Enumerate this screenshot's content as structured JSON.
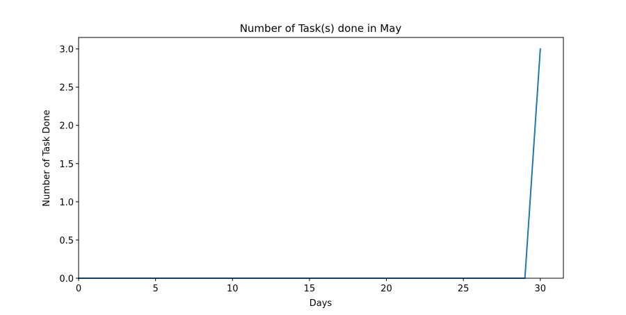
{
  "chart_data": {
    "type": "line",
    "title": "Number of Task(s) done in May",
    "xlabel": "Days",
    "ylabel": "Number of Task Done",
    "xlim": [
      0,
      31.5
    ],
    "ylim": [
      0,
      3.15
    ],
    "xticks": [
      0,
      5,
      10,
      15,
      20,
      25,
      30
    ],
    "xtick_labels": [
      "0",
      "5",
      "10",
      "15",
      "20",
      "25",
      "30"
    ],
    "yticks": [
      0,
      0.5,
      1,
      1.5,
      2,
      2.5,
      3
    ],
    "ytick_labels": [
      "0.0",
      "0.5",
      "1.0",
      "1.5",
      "2.0",
      "2.5",
      "3.0"
    ],
    "grid": false,
    "legend": "none",
    "series": [
      {
        "color": "#1f77b4",
        "x": [
          0,
          1,
          2,
          3,
          4,
          5,
          6,
          7,
          8,
          9,
          10,
          11,
          12,
          13,
          14,
          15,
          16,
          17,
          18,
          19,
          20,
          21,
          22,
          23,
          24,
          25,
          26,
          27,
          28,
          29,
          30
        ],
        "y": [
          0,
          0,
          0,
          0,
          0,
          0,
          0,
          0,
          0,
          0,
          0,
          0,
          0,
          0,
          0,
          0,
          0,
          0,
          0,
          0,
          0,
          0,
          0,
          0,
          0,
          0,
          0,
          0,
          0,
          0,
          3
        ]
      }
    ]
  }
}
